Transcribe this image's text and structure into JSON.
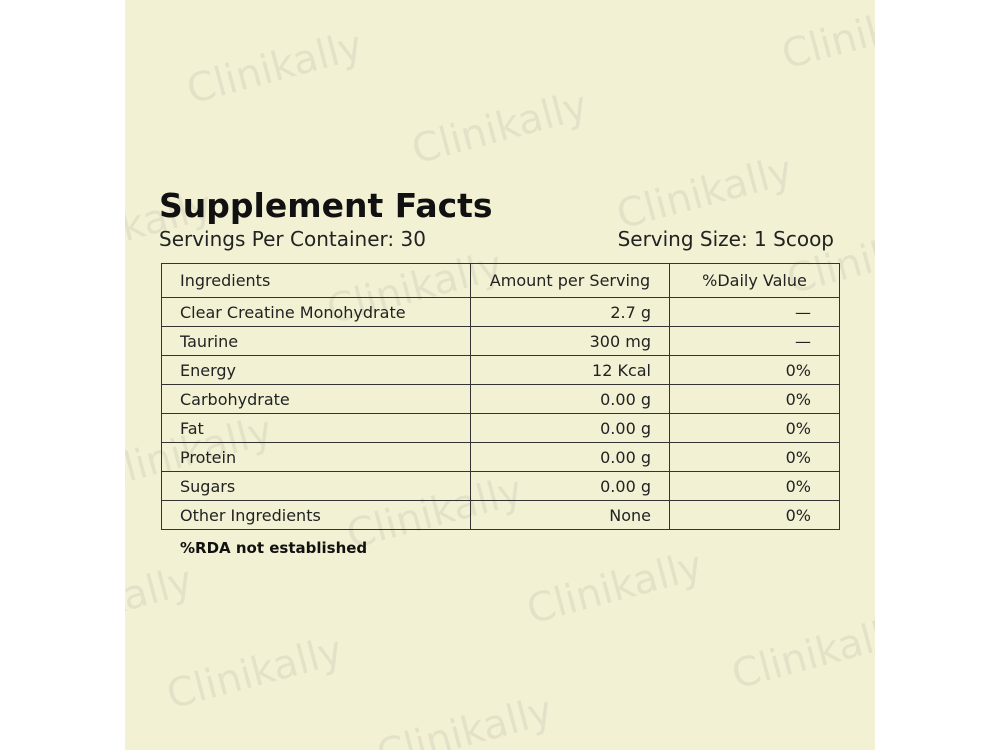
{
  "watermark": "Clinikally",
  "header": {
    "title": "Supplement Facts",
    "servings": "Servings Per Container: 30",
    "serving_size": "Serving Size: 1 Scoop"
  },
  "table": {
    "columns": [
      "Ingredients",
      "Amount per Serving",
      "%Daily Value"
    ],
    "rows": [
      [
        "Clear Creatine Monohydrate",
        "2.7 g",
        "—"
      ],
      [
        "Taurine",
        "300 mg",
        "—"
      ],
      [
        "Energy",
        "12 Kcal",
        "0%"
      ],
      [
        "Carbohydrate",
        "0.00 g",
        "0%"
      ],
      [
        "Fat",
        "0.00 g",
        "0%"
      ],
      [
        "Protein",
        "0.00 g",
        "0%"
      ],
      [
        "Sugars",
        "0.00 g",
        "0%"
      ],
      [
        "Other Ingredients",
        "None",
        "0%"
      ]
    ]
  },
  "footnote": "%RDA not established"
}
